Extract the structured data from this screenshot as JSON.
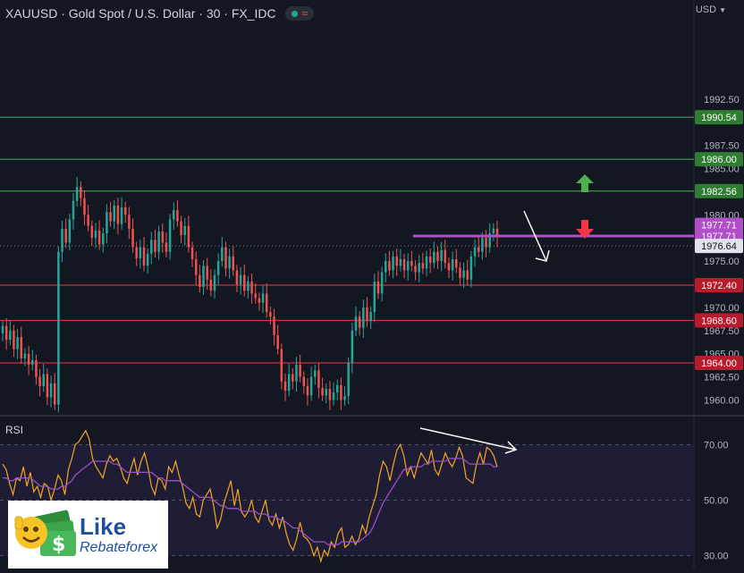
{
  "header": {
    "title": "XAUUSD · Gold Spot / U.S. Dollar · 30 · FX_IDC",
    "wave_glyph": "≈"
  },
  "currency": {
    "label": "USD",
    "icon": "chevron-down-icon"
  },
  "rsi_label": "RSI",
  "logo": {
    "line1": "Like",
    "line2": "Rebateforex"
  },
  "colors": {
    "background": "#131722",
    "bull": "#26a69a",
    "bear": "#ef5350",
    "green_level": "#4caf50",
    "red_level": "#f23645",
    "resistance": "#b14fc7",
    "rsi_line": "#f5a623",
    "rsi_ma": "#9c4fc7",
    "rsi_band": "#1f1d35",
    "arrow_white": "#ffffff"
  },
  "chart_data": [
    {
      "type": "candlestick",
      "title": "XAUUSD · Gold Spot / U.S. Dollar · 30 · FX_IDC",
      "ylim": [
        1958.5,
        2000.3
      ],
      "y_ticks": [
        "1992.50",
        "1987.50",
        "1985.00",
        "1980.00",
        "1975.00",
        "1970.00",
        "1967.50",
        "1965.00",
        "1962.50",
        "1960.00"
      ],
      "y_tick_values": [
        1992.5,
        1987.5,
        1985.0,
        1980.0,
        1975.0,
        1970.0,
        1967.5,
        1965.0,
        1962.5,
        1960.0
      ],
      "candle_closes": [
        1968.0,
        1966.5,
        1967.5,
        1965.5,
        1966.8,
        1964.5,
        1965.0,
        1963.8,
        1964.3,
        1962.5,
        1961.5,
        1962.8,
        1960.3,
        1961.8,
        1959.5,
        1976.0,
        1978.5,
        1977.0,
        1979.5,
        1981.5,
        1983.0,
        1981.8,
        1980.0,
        1978.8,
        1977.5,
        1978.3,
        1976.8,
        1978.0,
        1980.3,
        1979.3,
        1981.0,
        1979.0,
        1980.8,
        1980.0,
        1978.5,
        1976.5,
        1975.3,
        1976.5,
        1974.5,
        1975.8,
        1977.3,
        1976.0,
        1978.2,
        1977.0,
        1976.0,
        1979.5,
        1980.5,
        1979.3,
        1977.8,
        1978.8,
        1976.5,
        1975.2,
        1973.5,
        1972.2,
        1974.5,
        1973.0,
        1971.8,
        1973.5,
        1975.0,
        1976.5,
        1974.2,
        1975.5,
        1974.0,
        1972.5,
        1973.5,
        1971.8,
        1972.8,
        1971.5,
        1971.0,
        1970.5,
        1971.5,
        1969.5,
        1969.0,
        1967.0,
        1965.5,
        1962.0,
        1961.0,
        1962.8,
        1962.0,
        1963.8,
        1962.5,
        1961.5,
        1960.5,
        1962.5,
        1963.2,
        1961.3,
        1960.5,
        1961.2,
        1960.0,
        1960.8,
        1961.6,
        1960.0,
        1960.4,
        1964.0,
        1967.5,
        1969.0,
        1967.8,
        1970.0,
        1968.5,
        1969.5,
        1972.8,
        1971.5,
        1973.8,
        1975.0,
        1974.0,
        1975.5,
        1974.5,
        1975.2,
        1974.0,
        1975.0,
        1974.5,
        1973.8,
        1974.8,
        1974.2,
        1975.5,
        1974.8,
        1976.0,
        1975.0,
        1976.2,
        1974.8,
        1974.0,
        1975.2,
        1974.3,
        1973.2,
        1974.0,
        1973.0,
        1975.5,
        1976.5,
        1976.0,
        1977.5,
        1976.5,
        1978.0,
        1978.5,
        1977.6
      ],
      "horizontal_levels": [
        {
          "value": 1990.54,
          "label": "1990.54",
          "kind": "green"
        },
        {
          "value": 1986.0,
          "label": "1986.00",
          "kind": "green"
        },
        {
          "value": 1982.56,
          "label": "1982.56",
          "kind": "green"
        },
        {
          "value": 1972.4,
          "label": "1972.40",
          "kind": "red"
        },
        {
          "value": 1968.6,
          "label": "1968.60",
          "kind": "red"
        },
        {
          "value": 1964.0,
          "label": "1964.00",
          "kind": "red"
        }
      ],
      "resistance": {
        "value": 1977.71,
        "label": "1977.71"
      },
      "price_labels": [
        {
          "value": 1978.9,
          "label": "1977.71",
          "kind": "purple"
        },
        {
          "value": 1977.71,
          "label": "1977.71",
          "kind": "purple"
        },
        {
          "value": 1976.64,
          "label": "1976.64",
          "kind": "gray"
        }
      ],
      "current_price": 1976.64,
      "annotations": [
        {
          "kind": "arrow-up",
          "color": "green"
        },
        {
          "kind": "arrow-down",
          "color": "red"
        },
        {
          "kind": "line-arrow",
          "color": "white"
        }
      ]
    },
    {
      "type": "line",
      "title": "RSI",
      "ylim": [
        27.0,
        73.0
      ],
      "y_ticks": [
        "70.00",
        "50.00",
        "30.00"
      ],
      "y_tick_values": [
        70.0,
        50.0,
        30.0
      ],
      "band": [
        30.0,
        70.0
      ],
      "series": [
        {
          "values": [
            63,
            61,
            56,
            52,
            58,
            57,
            62,
            55,
            60,
            53,
            55,
            51,
            56,
            55,
            50,
            54,
            59,
            57,
            52,
            61,
            65,
            70,
            71,
            73,
            75,
            72,
            65,
            62,
            60,
            58,
            63,
            66,
            64,
            65,
            62,
            58,
            56,
            61,
            65,
            59,
            64,
            67,
            62,
            55,
            52,
            58,
            57,
            54,
            62,
            60,
            64,
            59,
            55,
            49,
            47,
            51,
            45,
            44,
            50,
            52,
            54,
            48,
            40,
            43,
            49,
            53,
            57,
            48,
            54,
            46,
            44,
            46,
            50,
            44,
            42,
            46,
            50,
            43,
            41,
            45,
            40,
            44,
            38,
            34,
            32,
            36,
            42,
            37,
            36,
            34,
            30,
            33,
            28,
            32,
            30,
            35,
            33,
            38,
            40,
            33,
            34,
            37,
            34,
            36,
            41,
            38,
            44,
            48,
            52,
            59,
            64,
            62,
            57,
            63,
            68,
            70,
            66,
            59,
            62,
            58,
            63,
            67,
            65,
            63,
            68,
            61,
            59,
            63,
            67,
            64,
            62,
            65,
            69,
            66,
            58,
            57,
            56,
            63,
            67,
            63,
            69,
            68,
            66,
            62
          ]
        },
        {
          "values": [
            58,
            58,
            57,
            57,
            58,
            58,
            58,
            58,
            58,
            57,
            56,
            55,
            55,
            55,
            54,
            54,
            54,
            55,
            55,
            56,
            57,
            59,
            60,
            61,
            62,
            63,
            64,
            64,
            64,
            64,
            64,
            64,
            63,
            63,
            62,
            61,
            60,
            60,
            60,
            60,
            60,
            60,
            60,
            60,
            59,
            58,
            58,
            57,
            57,
            57,
            57,
            57,
            56,
            55,
            54,
            53,
            52,
            51,
            51,
            51,
            51,
            50,
            49,
            48,
            48,
            47,
            47,
            47,
            47,
            46,
            46,
            46,
            46,
            46,
            45,
            45,
            45,
            44,
            44,
            44,
            43,
            43,
            42,
            41,
            40,
            40,
            39,
            38,
            37,
            36,
            35,
            35,
            35,
            35,
            34,
            34,
            34,
            34,
            35,
            35,
            35,
            35,
            35,
            35,
            36,
            37,
            38,
            40,
            43,
            46,
            49,
            51,
            53,
            55,
            57,
            59,
            61,
            61,
            62,
            62,
            62,
            62,
            63,
            63,
            64,
            64,
            64,
            64,
            64,
            65,
            65,
            65,
            65,
            65,
            64,
            63,
            63,
            63,
            63,
            63,
            63,
            63,
            62,
            62
          ]
        }
      ],
      "annotations": [
        {
          "kind": "line-arrow",
          "color": "white"
        }
      ]
    }
  ]
}
